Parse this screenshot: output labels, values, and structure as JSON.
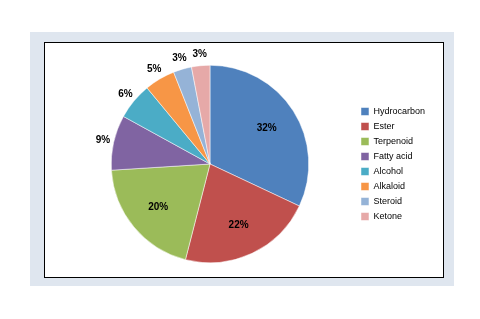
{
  "chart_data": {
    "type": "pie",
    "categories": [
      "Hydrocarbon",
      "Ester",
      "Terpenoid",
      "Fatty acid",
      "Alcohol",
      "Alkaloid",
      "Steroid",
      "Ketone"
    ],
    "values": [
      32,
      22,
      20,
      9,
      6,
      5,
      3,
      3
    ],
    "value_labels": [
      "32%",
      "22%",
      "20%",
      "9%",
      "6%",
      "5%",
      "3%",
      "3%"
    ],
    "colors": [
      "#4f81bd",
      "#c0504d",
      "#9bbb59",
      "#8064a2",
      "#4bacc6",
      "#f79646",
      "#95b3d7",
      "#e6a9a8"
    ],
    "legend": "right",
    "data_labels": true
  }
}
